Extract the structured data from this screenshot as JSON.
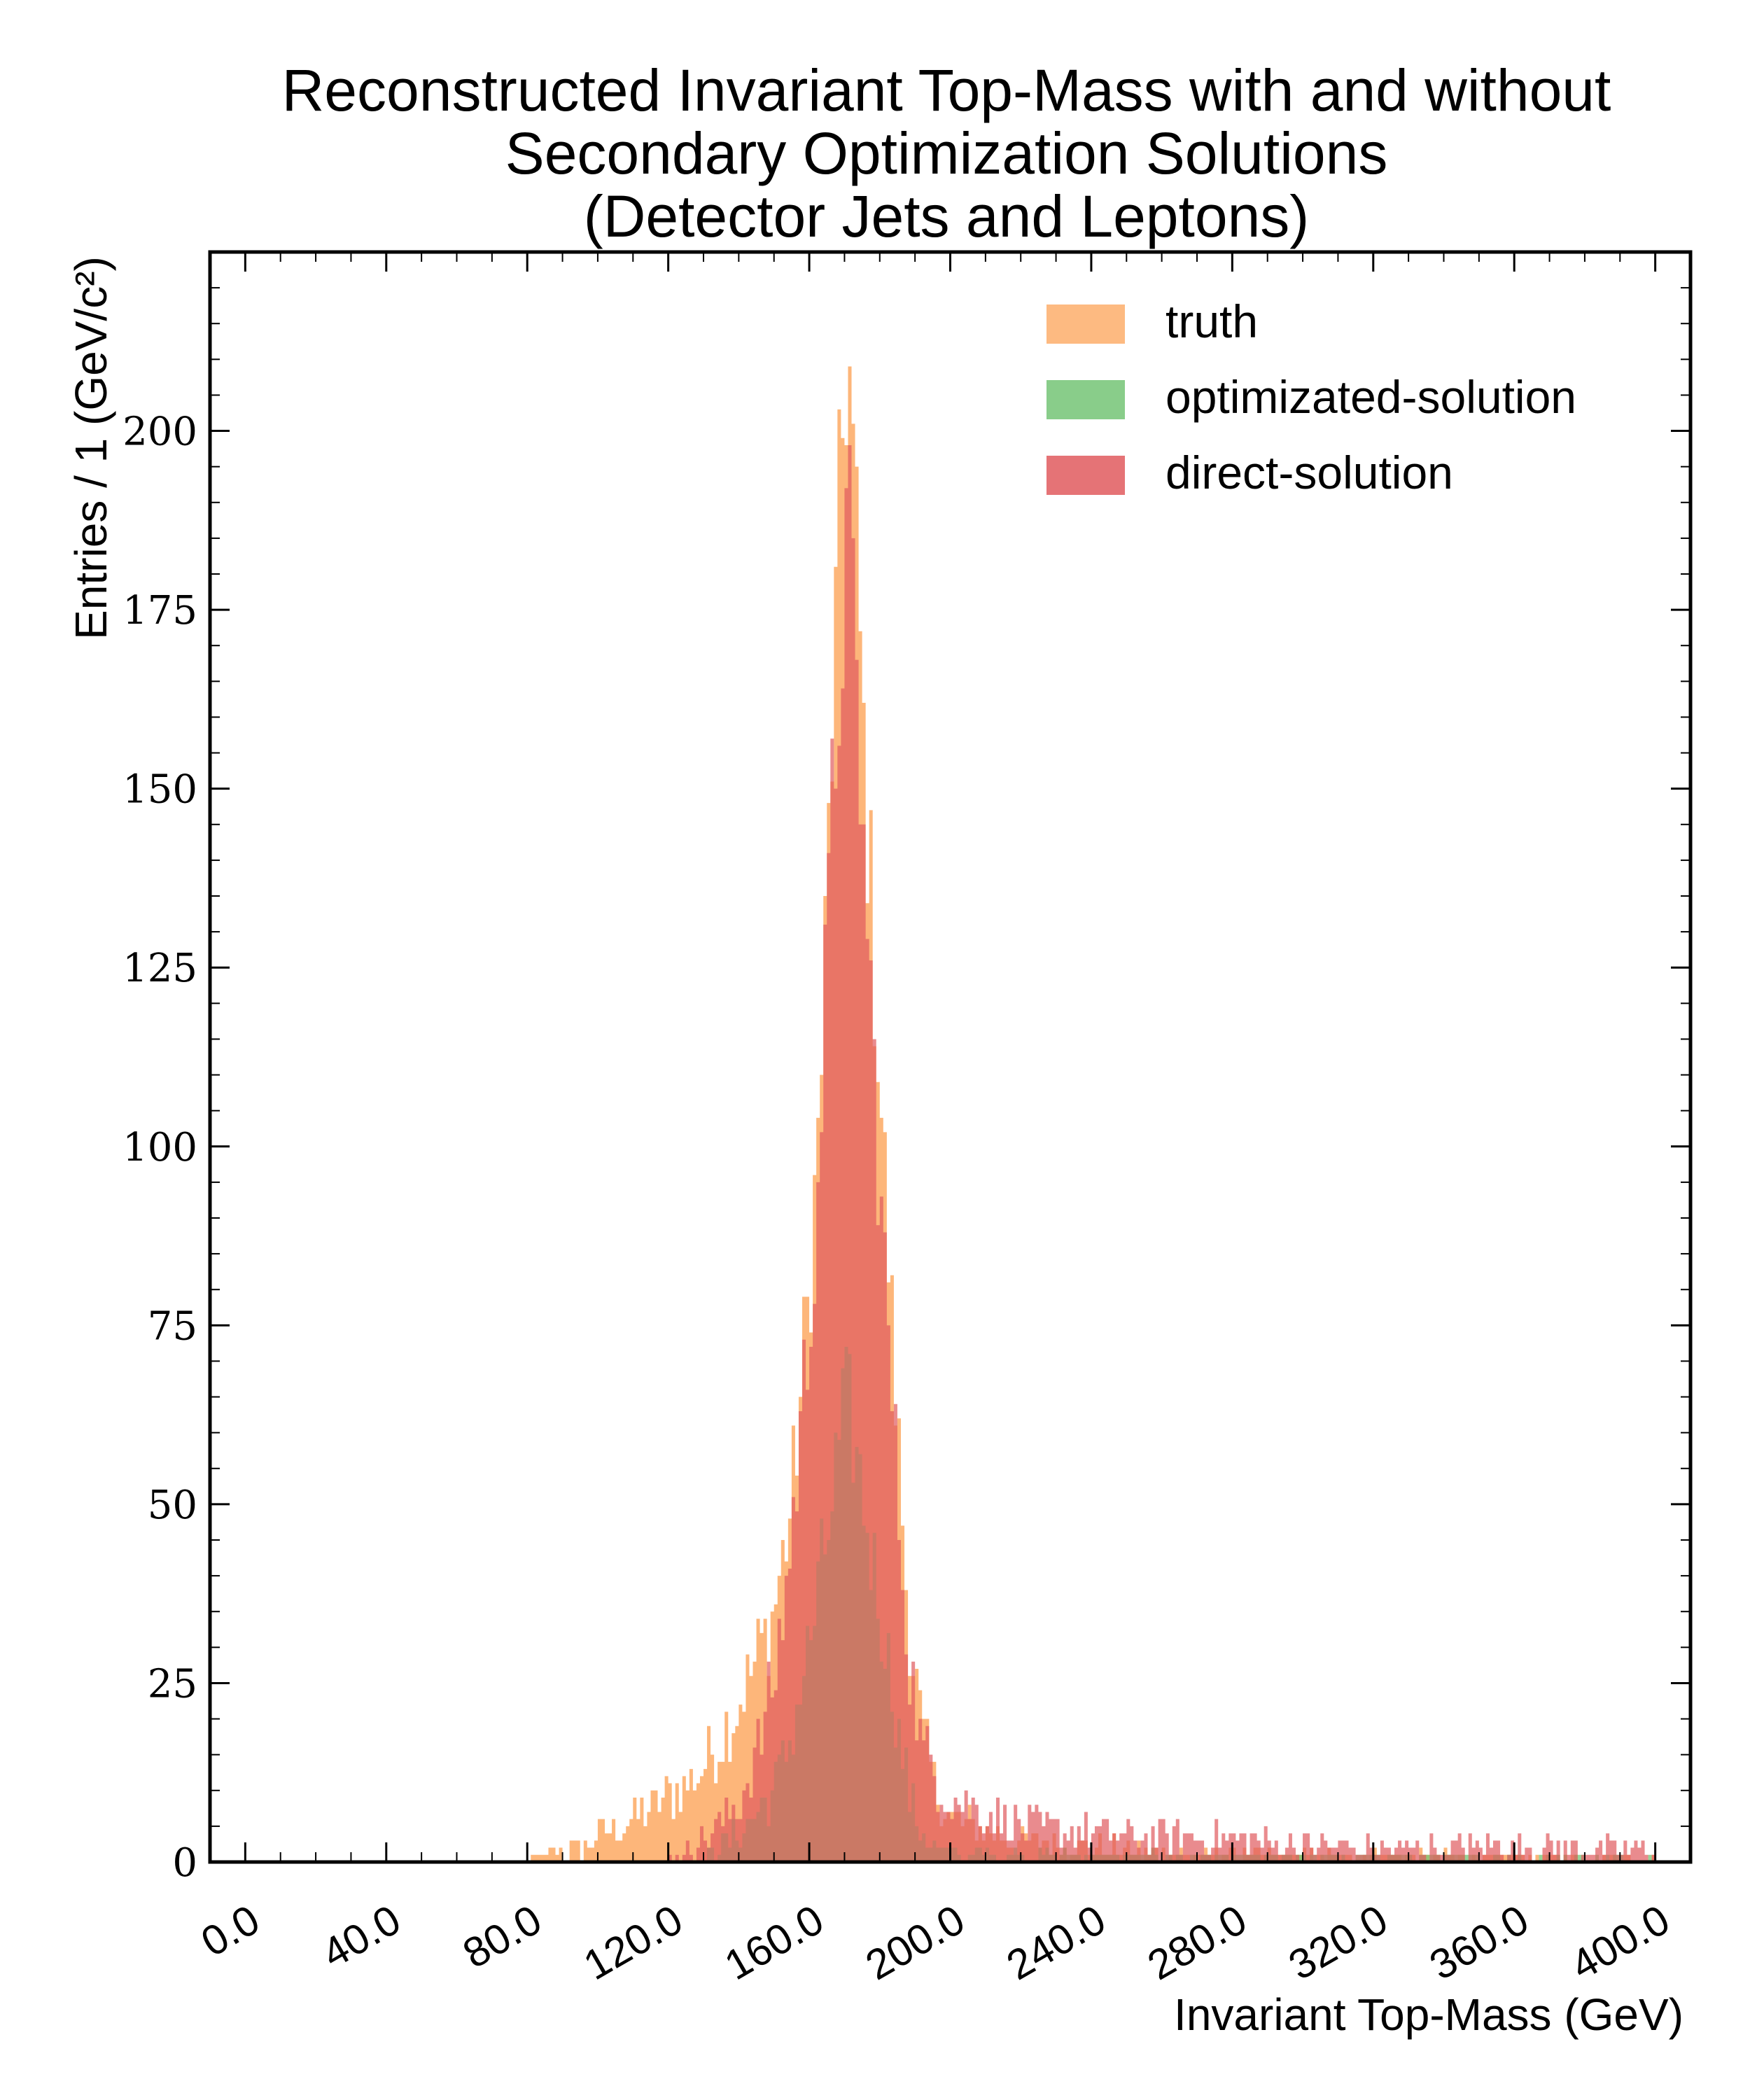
{
  "chart_data": {
    "type": "bar",
    "title_lines": [
      "Reconstructed Invariant Top-Mass with and without",
      "Secondary Optimization Solutions",
      "(Detector Jets and Leptons)"
    ],
    "xlabel": "Invariant Top-Mass (GeV)",
    "ylabel": "Entries / 1 (GeV/c²)",
    "xlim": [
      -10,
      410
    ],
    "ylim": [
      0,
      225
    ],
    "xticks": [
      0,
      40,
      80,
      120,
      160,
      200,
      240,
      280,
      320,
      360,
      400
    ],
    "xtick_labels": [
      "0.0",
      "40.0",
      "80.0",
      "120.0",
      "160.0",
      "200.0",
      "240.0",
      "280.0",
      "320.0",
      "360.0",
      "400.0"
    ],
    "yticks": [
      0,
      25,
      50,
      75,
      100,
      125,
      150,
      175,
      200
    ],
    "ytick_labels": [
      "0",
      "25",
      "50",
      "75",
      "100",
      "125",
      "150",
      "175",
      "200"
    ],
    "bin_width": 1,
    "legend_position": "top-right",
    "series": [
      {
        "name": "truth",
        "color": "#fdae6b",
        "opacity": 0.9,
        "peak_x": 171,
        "peak_y": 212,
        "description_points": [
          [
            80,
            0
          ],
          [
            95,
            2
          ],
          [
            110,
            6
          ],
          [
            120,
            9
          ],
          [
            130,
            13
          ],
          [
            140,
            22
          ],
          [
            150,
            35
          ],
          [
            155,
            50
          ],
          [
            160,
            80
          ],
          [
            163,
            105
          ],
          [
            166,
            150
          ],
          [
            169,
            195
          ],
          [
            171,
            212
          ],
          [
            173,
            190
          ],
          [
            176,
            150
          ],
          [
            180,
            110
          ],
          [
            184,
            70
          ],
          [
            188,
            35
          ],
          [
            192,
            18
          ],
          [
            196,
            10
          ],
          [
            200,
            6
          ],
          [
            220,
            3
          ],
          [
            260,
            1
          ],
          [
            320,
            0.5
          ],
          [
            400,
            0
          ]
        ]
      },
      {
        "name": "optimizated-solution",
        "color": "#74c476",
        "opacity": 0.75,
        "peak_x": 171,
        "peak_y": 64,
        "description_points": [
          [
            130,
            0
          ],
          [
            135,
            2
          ],
          [
            140,
            4
          ],
          [
            145,
            7
          ],
          [
            150,
            10
          ],
          [
            155,
            18
          ],
          [
            160,
            30
          ],
          [
            165,
            45
          ],
          [
            169,
            60
          ],
          [
            171,
            64
          ],
          [
            174,
            55
          ],
          [
            178,
            42
          ],
          [
            182,
            30
          ],
          [
            186,
            16
          ],
          [
            190,
            6
          ],
          [
            195,
            2
          ],
          [
            200,
            1
          ],
          [
            260,
            0.3
          ],
          [
            400,
            0
          ]
        ]
      },
      {
        "name": "direct-solution",
        "color": "#e05a5e",
        "opacity": 0.7,
        "peak_x": 171,
        "peak_y": 188,
        "description_points": [
          [
            120,
            0
          ],
          [
            130,
            3
          ],
          [
            140,
            8
          ],
          [
            145,
            15
          ],
          [
            150,
            25
          ],
          [
            155,
            45
          ],
          [
            160,
            75
          ],
          [
            163,
            100
          ],
          [
            166,
            140
          ],
          [
            169,
            170
          ],
          [
            171,
            188
          ],
          [
            173,
            170
          ],
          [
            176,
            135
          ],
          [
            180,
            95
          ],
          [
            184,
            60
          ],
          [
            188,
            30
          ],
          [
            192,
            16
          ],
          [
            196,
            12
          ],
          [
            200,
            9
          ],
          [
            220,
            5
          ],
          [
            240,
            4
          ],
          [
            280,
            3
          ],
          [
            320,
            2
          ],
          [
            360,
            2
          ],
          [
            400,
            1.5
          ]
        ]
      }
    ]
  }
}
